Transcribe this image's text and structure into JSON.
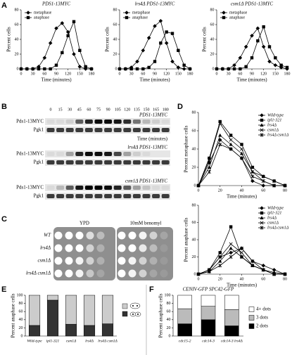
{
  "panel_labels": [
    "A",
    "B",
    "C",
    "D",
    "E",
    "F"
  ],
  "blot_lanes": [
    "0",
    "15",
    "30",
    "45",
    "60",
    "75",
    "90",
    "105",
    "120",
    "135",
    "150",
    "165",
    "180"
  ],
  "blot_xlabel": "Time (minutes)",
  "blots": [
    {
      "title": "PDS1-13MYC",
      "rows": [
        "Pds1-13MYC",
        "Pgk1"
      ]
    },
    {
      "title": "lrs4Δ PDS1-13MYC",
      "rows": [
        "Pds1-13MYC",
        "Pgk1"
      ]
    },
    {
      "title": "csm1Δ PDS1-13MYC",
      "rows": [
        "Pds1-13MYC",
        "Pgk1"
      ]
    }
  ],
  "plates": {
    "columns": [
      "YPD",
      "10mM benomyl"
    ],
    "rows": [
      "WT",
      "lrs4Δ",
      "csm1Δ",
      "lrs4Δ csm1Δ"
    ]
  },
  "chart_data": [
    {
      "type": "line",
      "title": "PDS1-13MYC",
      "xlabel": "Time (minutes)",
      "ylabel": "Percent cells",
      "x": [
        0,
        15,
        30,
        45,
        60,
        75,
        90,
        105,
        120,
        135,
        150,
        165,
        180
      ],
      "xlim": [
        0,
        180
      ],
      "xticks": [
        0,
        30,
        60,
        90,
        120,
        150,
        180
      ],
      "ylim": [
        0,
        80
      ],
      "yticks": [
        0,
        20,
        40,
        60,
        80
      ],
      "legend": "upper left",
      "series": [
        {
          "name": "metaphase",
          "color": "#000",
          "marker": "diamond",
          "values": [
            0,
            0,
            0,
            3,
            15,
            35,
            55,
            62,
            50,
            20,
            3,
            0,
            0
          ]
        },
        {
          "name": "anaphase",
          "color": "#000",
          "marker": "square",
          "values": [
            0,
            0,
            0,
            0,
            0,
            0,
            5,
            22,
            45,
            64,
            25,
            3,
            0
          ]
        }
      ]
    },
    {
      "type": "line",
      "title": "lrs4Δ PDS1-13MYC",
      "xlabel": "Time (minutes)",
      "ylabel": "Percent cells",
      "x": [
        0,
        15,
        30,
        45,
        60,
        75,
        90,
        105,
        120,
        135,
        150,
        165,
        180
      ],
      "xlim": [
        0,
        180
      ],
      "xticks": [
        0,
        30,
        60,
        90,
        120,
        150,
        180
      ],
      "ylim": [
        0,
        80
      ],
      "yticks": [
        0,
        20,
        40,
        60,
        80
      ],
      "legend": "upper left",
      "series": [
        {
          "name": "metaphase",
          "color": "#000",
          "marker": "diamond",
          "values": [
            0,
            0,
            2,
            10,
            25,
            42,
            58,
            65,
            35,
            10,
            2,
            0,
            0
          ]
        },
        {
          "name": "anaphase",
          "color": "#000",
          "marker": "square",
          "values": [
            0,
            0,
            0,
            0,
            0,
            2,
            10,
            35,
            50,
            48,
            25,
            5,
            0
          ]
        }
      ]
    },
    {
      "type": "line",
      "title": "csm1Δ PDS1-13MYC",
      "xlabel": "Time (minutes)",
      "ylabel": "Percent cells",
      "x": [
        0,
        15,
        30,
        45,
        60,
        75,
        90,
        105,
        120,
        135,
        150,
        165,
        180
      ],
      "xlim": [
        0,
        180
      ],
      "xticks": [
        0,
        30,
        60,
        90,
        120,
        150,
        180
      ],
      "ylim": [
        0,
        80
      ],
      "yticks": [
        0,
        20,
        40,
        60,
        80
      ],
      "legend": "upper left",
      "series": [
        {
          "name": "metaphase",
          "color": "#000",
          "marker": "diamond",
          "values": [
            0,
            0,
            0,
            5,
            15,
            30,
            45,
            55,
            30,
            10,
            5,
            2,
            0
          ]
        },
        {
          "name": "anaphase",
          "color": "#000",
          "marker": "square",
          "values": [
            0,
            0,
            0,
            0,
            0,
            3,
            15,
            38,
            57,
            30,
            15,
            5,
            2
          ]
        }
      ]
    },
    {
      "type": "line",
      "xlabel": "Time (minutes)",
      "ylabel": "Percent metaphase cells",
      "x": [
        0,
        10,
        20,
        30,
        40,
        50,
        60,
        70,
        80
      ],
      "xlim": [
        0,
        80
      ],
      "xticks": [
        0,
        20,
        40,
        60,
        80
      ],
      "ylim": [
        0,
        80
      ],
      "yticks": [
        0,
        20,
        40,
        60,
        80
      ],
      "legend": "upper right",
      "series": [
        {
          "name": "Wild-type",
          "color": "#000",
          "marker": "diamond",
          "values": [
            0,
            25,
            50,
            40,
            30,
            5,
            0,
            0,
            0
          ]
        },
        {
          "name": "ipl1-321",
          "color": "#000",
          "marker": "square",
          "values": [
            0,
            30,
            70,
            55,
            45,
            20,
            10,
            5,
            0
          ]
        },
        {
          "name": "lrs4Δ",
          "color": "#000",
          "marker": "triangle",
          "values": [
            0,
            20,
            55,
            45,
            35,
            15,
            10,
            5,
            0
          ]
        },
        {
          "name": "csm1Δ",
          "color": "#000",
          "marker": "x",
          "values": [
            0,
            28,
            68,
            50,
            40,
            15,
            5,
            0,
            0
          ]
        },
        {
          "name": "lrs4Δ csm1Δ",
          "color": "#000",
          "marker": "star",
          "values": [
            0,
            15,
            45,
            40,
            30,
            10,
            5,
            0,
            0
          ]
        }
      ]
    },
    {
      "type": "line",
      "xlabel": "Time (minutes)",
      "ylabel": "Percent anaphase cells",
      "x": [
        0,
        10,
        20,
        30,
        40,
        50,
        60,
        70,
        80
      ],
      "xlim": [
        0,
        80
      ],
      "xticks": [
        0,
        20,
        40,
        60,
        80
      ],
      "ylim": [
        0,
        80
      ],
      "yticks": [
        0,
        20,
        40,
        60,
        80
      ],
      "legend": "upper right",
      "series": [
        {
          "name": "Wild-type",
          "color": "#000",
          "marker": "diamond",
          "values": [
            0,
            5,
            20,
            25,
            30,
            15,
            10,
            5,
            0
          ]
        },
        {
          "name": "ipl1-321",
          "color": "#000",
          "marker": "square",
          "values": [
            0,
            5,
            25,
            55,
            20,
            10,
            5,
            0,
            0
          ]
        },
        {
          "name": "lrs4Δ",
          "color": "#000",
          "marker": "triangle",
          "values": [
            0,
            3,
            15,
            30,
            20,
            10,
            5,
            2,
            0
          ]
        },
        {
          "name": "csm1Δ",
          "color": "#000",
          "marker": "x",
          "values": [
            0,
            5,
            20,
            35,
            25,
            10,
            5,
            0,
            0
          ]
        },
        {
          "name": "lrs4Δ csm1Δ",
          "color": "#000",
          "marker": "star",
          "values": [
            0,
            3,
            10,
            20,
            30,
            15,
            5,
            0,
            0
          ]
        }
      ]
    },
    {
      "type": "bar",
      "stacked": true,
      "ylabel": "Percent anaphase cells",
      "categories": [
        "Wild-type",
        "ipl1-321",
        "csm1Δ",
        "lrs4Δ",
        "lrs4Δ csm1Δ"
      ],
      "ylim": [
        0,
        100
      ],
      "yticks": [
        0,
        20,
        40,
        60,
        80,
        100
      ],
      "series": [
        {
          "color": "#333333",
          "values": [
            26,
            88,
            29,
            26,
            30
          ]
        },
        {
          "color": "#cccccc",
          "values": [
            74,
            12,
            71,
            74,
            70
          ]
        }
      ]
    },
    {
      "type": "bar",
      "stacked": true,
      "title": "CENIV-GFP SPC42-GFP",
      "ylabel": "Percent anaphase cells",
      "categories": [
        "cdc15-2",
        "cdc14-3",
        "cdc14-3 lrs4Δ"
      ],
      "ylim": [
        0,
        100
      ],
      "yticks": [
        0,
        20,
        40,
        60,
        80,
        100
      ],
      "series": [
        {
          "name": "2 dots",
          "color": "#000000",
          "values": [
            30,
            40,
            25
          ]
        },
        {
          "name": "3 dots",
          "color": "#bbbbbb",
          "values": [
            37,
            33,
            40
          ]
        },
        {
          "name": "4+ dots",
          "color": "#ffffff",
          "values": [
            33,
            27,
            35
          ]
        }
      ]
    }
  ]
}
